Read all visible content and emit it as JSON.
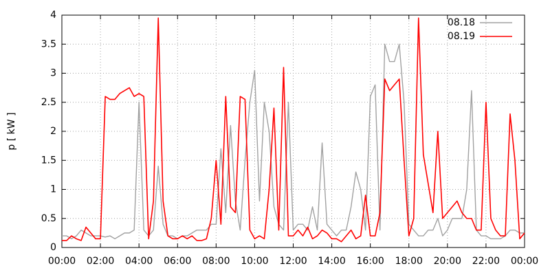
{
  "chart_data": {
    "type": "line",
    "y_label": "p [ kW ]",
    "x": [
      0,
      0.25,
      0.5,
      0.75,
      1,
      1.25,
      1.5,
      1.75,
      2,
      2.25,
      2.5,
      2.75,
      3,
      3.25,
      3.5,
      3.75,
      4,
      4.25,
      4.5,
      4.75,
      5,
      5.25,
      5.5,
      5.75,
      6,
      6.25,
      6.5,
      6.75,
      7,
      7.25,
      7.5,
      7.75,
      8,
      8.25,
      8.5,
      8.75,
      9,
      9.25,
      9.5,
      9.75,
      10,
      10.25,
      10.5,
      10.75,
      11,
      11.25,
      11.5,
      11.75,
      12,
      12.25,
      12.5,
      12.75,
      13,
      13.25,
      13.5,
      13.75,
      14,
      14.25,
      14.5,
      14.75,
      15,
      15.25,
      15.5,
      15.75,
      16,
      16.25,
      16.5,
      16.75,
      17,
      17.25,
      17.5,
      17.75,
      18,
      18.25,
      18.5,
      18.75,
      19,
      19.25,
      19.5,
      19.75,
      20,
      20.25,
      20.5,
      20.75,
      21,
      21.25,
      21.5,
      21.75,
      22,
      22.25,
      22.5,
      22.75,
      23,
      23.25,
      23.5,
      23.75,
      24
    ],
    "series": [
      {
        "name": "08.18",
        "color": "#a0a0a0",
        "values": [
          0.2,
          0.2,
          0.15,
          0.2,
          0.3,
          0.25,
          0.2,
          0.2,
          0.2,
          0.18,
          0.2,
          0.15,
          0.2,
          0.25,
          0.25,
          0.3,
          2.5,
          0.3,
          0.2,
          0.3,
          1.4,
          0.4,
          0.2,
          0.2,
          0.15,
          0.2,
          0.2,
          0.25,
          0.3,
          0.3,
          0.3,
          0.4,
          0.4,
          1.7,
          0.6,
          2.1,
          0.8,
          0.3,
          1.5,
          2.5,
          3.05,
          0.8,
          2.5,
          2.0,
          0.7,
          0.4,
          0.3,
          2.5,
          0.3,
          0.4,
          0.4,
          0.3,
          0.7,
          0.3,
          1.8,
          0.4,
          0.3,
          0.2,
          0.3,
          0.3,
          0.7,
          1.3,
          1.0,
          0.3,
          2.6,
          2.8,
          0.3,
          3.5,
          3.2,
          3.2,
          3.5,
          2.5,
          0.4,
          0.3,
          0.2,
          0.2,
          0.3,
          0.3,
          0.5,
          0.2,
          0.3,
          0.5,
          0.5,
          0.5,
          1.0,
          2.7,
          0.3,
          0.2,
          0.2,
          0.15,
          0.15,
          0.15,
          0.2,
          0.3,
          0.3,
          0.25,
          0.25
        ]
      },
      {
        "name": "08.19",
        "color": "#ff0000",
        "values": [
          0.12,
          0.12,
          0.2,
          0.15,
          0.12,
          0.35,
          0.25,
          0.15,
          0.15,
          2.6,
          2.55,
          2.55,
          2.65,
          2.7,
          2.75,
          2.6,
          2.65,
          2.6,
          0.15,
          0.8,
          3.95,
          0.8,
          0.2,
          0.15,
          0.15,
          0.2,
          0.15,
          0.2,
          0.12,
          0.12,
          0.15,
          0.5,
          1.5,
          0.4,
          2.6,
          0.7,
          0.6,
          2.6,
          2.55,
          0.3,
          0.15,
          0.2,
          0.15,
          1.0,
          2.4,
          0.3,
          3.1,
          0.2,
          0.2,
          0.3,
          0.2,
          0.35,
          0.15,
          0.2,
          0.3,
          0.25,
          0.15,
          0.15,
          0.1,
          0.2,
          0.3,
          0.15,
          0.2,
          0.9,
          0.2,
          0.2,
          0.6,
          2.9,
          2.7,
          2.8,
          2.9,
          1.5,
          0.2,
          0.5,
          3.95,
          1.6,
          1.1,
          0.6,
          2.0,
          0.5,
          0.6,
          0.7,
          0.8,
          0.6,
          0.5,
          0.5,
          0.3,
          0.3,
          2.5,
          0.5,
          0.3,
          0.2,
          0.2,
          2.3,
          1.5,
          0.15,
          0.25
        ]
      }
    ],
    "xlim": [
      0,
      24
    ],
    "xticks": [
      {
        "value": 0,
        "label": "00:00"
      },
      {
        "value": 2,
        "label": "02:00"
      },
      {
        "value": 4,
        "label": "04:00"
      },
      {
        "value": 6,
        "label": "06:00"
      },
      {
        "value": 8,
        "label": "08:00"
      },
      {
        "value": 10,
        "label": "10:00"
      },
      {
        "value": 12,
        "label": "12:00"
      },
      {
        "value": 14,
        "label": "14:00"
      },
      {
        "value": 16,
        "label": "16:00"
      },
      {
        "value": 18,
        "label": "18:00"
      },
      {
        "value": 20,
        "label": "20:00"
      },
      {
        "value": 22,
        "label": "22:00"
      },
      {
        "value": 24,
        "label": "00:00"
      }
    ],
    "ylim": [
      0,
      4
    ],
    "yticks": [
      0,
      0.5,
      1,
      1.5,
      2,
      2.5,
      3,
      3.5,
      4
    ],
    "grid": true,
    "legend": "top-right"
  }
}
